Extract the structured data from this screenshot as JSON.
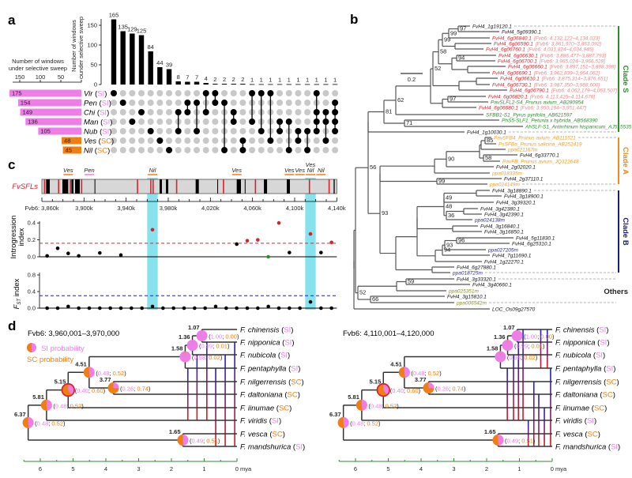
{
  "colors": {
    "si": "#ee7de8",
    "sc": "#f07f12",
    "red": "#d8232a",
    "cyan": "#86e3ee",
    "green": "#2e8b2e",
    "navy": "#1b1f7a",
    "clade_s": "#2e8b2e",
    "clade_a": "#f08a1c",
    "clade_b": "#1b1f7a",
    "others": "#8a8a2a",
    "coords": "#e58a8a",
    "tree_orange": "#e8a030"
  },
  "panel_a": {
    "label": "a",
    "top_axis_title": [
      "Number of windows",
      "under selective sweep"
    ],
    "top_ticks": [
      0,
      50,
      100,
      150
    ],
    "left_axis_title": [
      "Number of windows",
      "under selective sweep"
    ],
    "left_ticks": [
      150,
      100,
      50,
      0
    ],
    "sets": [
      {
        "name": "Vir",
        "type": "SI",
        "size": 175
      },
      {
        "name": "Pen",
        "type": "SI",
        "size": 154
      },
      {
        "name": "Chi",
        "type": "SI",
        "size": 149
      },
      {
        "name": "Man",
        "type": "SI",
        "size": 136
      },
      {
        "name": "Nub",
        "type": "SI",
        "size": 105
      },
      {
        "name": "Ves",
        "type": "SC",
        "size": 48
      },
      {
        "name": "Nil",
        "type": "SC",
        "size": 45
      }
    ],
    "intersections": [
      {
        "count": 165,
        "sets": [
          "Vir"
        ]
      },
      {
        "count": 135,
        "sets": [
          "Pen"
        ]
      },
      {
        "count": 129,
        "sets": [
          "Man"
        ]
      },
      {
        "count": 125,
        "sets": [
          "Chi"
        ]
      },
      {
        "count": 84,
        "sets": [
          "Nub"
        ]
      },
      {
        "count": 44,
        "sets": [
          "Ves"
        ]
      },
      {
        "count": 39,
        "sets": [
          "Nil"
        ]
      },
      {
        "count": 8,
        "sets": [
          "Chi",
          "Nub"
        ]
      },
      {
        "count": 7,
        "sets": [
          "Pen",
          "Chi"
        ]
      },
      {
        "count": 7,
        "sets": [
          "Pen",
          "Nub"
        ]
      },
      {
        "count": 4,
        "sets": [
          "Vir",
          "Chi"
        ]
      },
      {
        "count": 2,
        "sets": [
          "Vir",
          "Pen"
        ]
      },
      {
        "count": 2,
        "sets": [
          "Pen",
          "Nil"
        ]
      },
      {
        "count": 2,
        "sets": [
          "Chi",
          "Man"
        ]
      },
      {
        "count": 2,
        "sets": [
          "Ves",
          "Nil"
        ]
      },
      {
        "count": 1,
        "sets": [
          "Vir",
          "Man"
        ]
      },
      {
        "count": 1,
        "sets": [
          "Vir",
          "Nub"
        ]
      },
      {
        "count": 1,
        "sets": [
          "Vir",
          "Ves"
        ]
      },
      {
        "count": 1,
        "sets": [
          "Man",
          "Nub"
        ]
      },
      {
        "count": 1,
        "sets": [
          "Man",
          "Nil"
        ]
      },
      {
        "count": 1,
        "sets": [
          "Nub",
          "Ves"
        ]
      },
      {
        "count": 1,
        "sets": [
          "Nub",
          "Nil"
        ]
      },
      {
        "count": 1,
        "sets": [
          "Vir",
          "Chi",
          "Man",
          "Nub"
        ]
      },
      {
        "count": 1,
        "sets": [
          "Chi",
          "Man",
          "Ves"
        ]
      },
      {
        "count": 1,
        "sets": [
          "Pen",
          "Chi",
          "Man",
          "Nub"
        ]
      }
    ]
  },
  "panel_b": {
    "label": "b",
    "scale_label": "0.2",
    "clades": [
      {
        "name": "Clade S",
        "first": 0,
        "last": 18,
        "color": "#2e8b2e"
      },
      {
        "name": "Clade A",
        "first": 19,
        "last": 27,
        "color": "#f08a1c"
      },
      {
        "name": "Clade B",
        "first": 28,
        "last": 42,
        "color": "#1b1f7a"
      },
      {
        "name": "Others",
        "first": 43,
        "last": 47,
        "color": "#8a8a8a"
      }
    ],
    "leaves": [
      {
        "name": "FvH4_1g19120.1",
        "g": "k"
      },
      {
        "name": "FvH4_5g09390.1",
        "g": "k"
      },
      {
        "name": "FvH4_6g06840.1",
        "g": "r",
        "coord": "[Fvb6: 4,132,122–4,134,023]"
      },
      {
        "name": "FvH4_6g06590.1",
        "g": "r",
        "coord": "[Fvb6: 3,861,970–3,863,092]"
      },
      {
        "name": "FvH4_6g06760.1",
        "g": "r",
        "coord": "[Fvb6: 4,031,824–4,034,945]"
      },
      {
        "name": "FvH4_6g06630.1",
        "g": "r",
        "coord": "[Fvb6: 3,886,477–3,887,793]"
      },
      {
        "name": "FvH4_6g06700.1",
        "g": "r",
        "coord": "[Fvb6: 3,965,024–3,966,528]"
      },
      {
        "name": "FvH4_6g06660.1",
        "g": "r",
        "coord": "[Fvb6: 3,897,151–3,898,398]"
      },
      {
        "name": "FvH4_6g06690.1",
        "g": "r",
        "coord": "[Fvb6: 3,962,839–3,964,062]"
      },
      {
        "name": "FvH4_6g06610.1",
        "g": "r",
        "coord": "[Fvb6: 3,875,314–3,876,651]"
      },
      {
        "name": "FvH4_6g06730.1",
        "g": "r",
        "coord": "[Fvb6: 3,987,350–3,988,600]"
      },
      {
        "name": "FvH4_6g06790.1",
        "g": "r",
        "coord": "[Fvb6: 4,062,179–4,063,507]"
      },
      {
        "name": "FvH4_6g06820.1",
        "g": "r",
        "coord": "[Fvb6: 4,113,425–4,114,676]"
      },
      {
        "name": "PavSLFL2-S4_Prunus avium_AB280954",
        "g": "g"
      },
      {
        "name": "FvH4_6g06680.1",
        "g": "r",
        "coord": "[Fvb6: 3,950,194–3,951,447]"
      },
      {
        "name": "SFBB1-S1_Pyrus pyrifolia_AB621597",
        "g": "g"
      },
      {
        "name": "PhS5-SLF1_Petunia x hybrida_AB568390",
        "g": "g"
      },
      {
        "name": "AhSLF-S1_Antirrhinum hispanicum_AJ515535",
        "g": "g"
      },
      {
        "name": "FvH4_1g10030.1",
        "g": "k"
      },
      {
        "name": "PavSFB4_Prunus avium_AB111521",
        "g": "o"
      },
      {
        "name": "PsSFBa_Prunus salicina_AB252419",
        "g": "o"
      },
      {
        "name": "ppa021167m",
        "g": "o"
      },
      {
        "name": "FvH4_6g33770.1",
        "g": "k"
      },
      {
        "name": "PavFB_Prunus avium_JQ322648",
        "g": "o"
      },
      {
        "name": "FvH4_2g02020.1",
        "g": "k"
      },
      {
        "name": "ppa018335m",
        "g": "o"
      },
      {
        "name": "FvH4_2g37110.1",
        "g": "k"
      },
      {
        "name": "ppa024149m",
        "g": "o"
      },
      {
        "name": "FvH4_3g18890.1",
        "g": "k"
      },
      {
        "name": "FvH4_3g18900.1",
        "g": "k"
      },
      {
        "name": "FvH4_3g39320.1",
        "g": "k"
      },
      {
        "name": "FvH4_3g42380.1",
        "g": "k"
      },
      {
        "name": "FvH4_3g42390.1",
        "g": "k"
      },
      {
        "name": "ppa024138m",
        "g": "n"
      },
      {
        "name": "FvH4_3g16840.1",
        "g": "k"
      },
      {
        "name": "FvH4_3g16850.1",
        "g": "k"
      },
      {
        "name": "FvH4_5g11830.1",
        "g": "k"
      },
      {
        "name": "FvH4_6g25310.1",
        "g": "k"
      },
      {
        "name": "ppa027205m",
        "g": "n"
      },
      {
        "name": "FvH4_7g11690.1",
        "g": "k"
      },
      {
        "name": "FvH4_1g22270.1",
        "g": "k"
      },
      {
        "name": "FvH4_6g27880.1",
        "g": "k"
      },
      {
        "name": "ppa018725m",
        "g": "n"
      },
      {
        "name": "FvH4_3g33320.1",
        "g": "k"
      },
      {
        "name": "FvH4_3g40660.1",
        "g": "k"
      },
      {
        "name": "ppa025351m",
        "g": "y"
      },
      {
        "name": "FvH4_3g15810.1",
        "g": "k"
      },
      {
        "name": "ppa006542m",
        "g": "y"
      },
      {
        "name": "LOC_Os09g27570",
        "g": "k"
      }
    ]
  },
  "panel_c": {
    "label": "c",
    "track_label": "FvSFLs",
    "x_ticks": [
      "Fvb6: 3,860k",
      "3,900k",
      "3,940k",
      "3,980k",
      "4,020k",
      "4,060k",
      "4,100k",
      "4,140k"
    ],
    "x_range_k": [
      3860,
      4140
    ],
    "highlight_windows_k": [
      [
        3960,
        3970
      ],
      [
        4110,
        4120
      ]
    ],
    "sfl_genes_k": [
      3861.97,
      3875.31,
      3886.48,
      3897.15,
      3950.19,
      3962.84,
      3965.02,
      3987.35,
      4031.82,
      4062.18,
      4113.43,
      4132.12
    ],
    "other_genes_k": [
      [
        3864,
        3867.5
      ],
      [
        3879.5,
        3885
      ],
      [
        3888,
        3890
      ],
      [
        3891.5,
        3896
      ],
      [
        3910,
        3910.6
      ],
      [
        3971.8,
        3974
      ],
      [
        3977.8,
        3980
      ],
      [
        4006,
        4009
      ],
      [
        4026.5,
        4027.3
      ],
      [
        4045,
        4049
      ],
      [
        4052.6,
        4053.2
      ],
      [
        4070.8,
        4073.8
      ],
      [
        4092.5,
        4095.5
      ],
      [
        4137,
        4138
      ]
    ],
    "sweep_labels": [
      {
        "text": "Ves",
        "k": 3885,
        "type": "SC"
      },
      {
        "text": "Pen",
        "k": 3905,
        "type": "SI"
      },
      {
        "text": "Nil",
        "k": 3965,
        "type": "SC"
      },
      {
        "text": "Ves",
        "k": 4045,
        "type": "SC"
      },
      {
        "text": "Ves",
        "k": 4095,
        "type": "SC"
      },
      {
        "text": "Ves",
        "k": 4105,
        "type": "SC"
      },
      {
        "text": "Ves\nNil",
        "k": 4115,
        "type": "SC"
      },
      {
        "text": "Nil",
        "k": 4125,
        "type": "SC"
      }
    ],
    "introgression": {
      "ylabel": [
        "Introgression",
        "index"
      ],
      "ticks": [
        0.0,
        0.2,
        0.4
      ],
      "threshold": 0.16,
      "points": [
        {
          "k": 3865,
          "v": 0.01,
          "c": "k"
        },
        {
          "k": 3875,
          "v": 0.1,
          "c": "k"
        },
        {
          "k": 3885,
          "v": 0.04,
          "c": "k"
        },
        {
          "k": 3895,
          "v": 0.01,
          "c": "k"
        },
        {
          "k": 3915,
          "v": 0.045,
          "c": "k"
        },
        {
          "k": 3935,
          "v": 0.02,
          "c": "k"
        },
        {
          "k": 3965,
          "v": 0.32,
          "c": "r"
        },
        {
          "k": 4045,
          "v": 0.15,
          "c": "k"
        },
        {
          "k": 4055,
          "v": 0.19,
          "c": "r"
        },
        {
          "k": 4065,
          "v": 0.2,
          "c": "r"
        },
        {
          "k": 4075,
          "v": 0.0,
          "c": "g"
        },
        {
          "k": 4085,
          "v": 0.4,
          "c": "r"
        },
        {
          "k": 4095,
          "v": 0.05,
          "c": "k"
        },
        {
          "k": 4115,
          "v": 0.27,
          "c": "r"
        },
        {
          "k": 4125,
          "v": 0.05,
          "c": "k"
        },
        {
          "k": 4135,
          "v": 0.17,
          "c": "r"
        }
      ]
    },
    "fst": {
      "ylabel": "F",
      "ylabel_sub": "ST",
      "ylabel_tail": " index",
      "ticks": [
        0.0,
        0.4,
        0.8
      ],
      "threshold": 0.3,
      "values": [
        0,
        0,
        0.04,
        0,
        0,
        0,
        0,
        0,
        0,
        0,
        0.04,
        0,
        0,
        0,
        0,
        0,
        0.04,
        0,
        0,
        0,
        0,
        0.04,
        0,
        0,
        0,
        0.15,
        0,
        0
      ]
    }
  },
  "panel_d": {
    "label": "d",
    "legend": {
      "si": "SI probability",
      "sc": "SC probability"
    },
    "axis_ticks": [
      "6",
      "5",
      "4",
      "3",
      "2",
      "1",
      "0 mya"
    ],
    "taxa": [
      {
        "name": "F. chinensis",
        "type": "SI"
      },
      {
        "name": "F. nipponica",
        "type": "SI"
      },
      {
        "name": "F. nubicola",
        "type": "SI"
      },
      {
        "name": "F. pentaphylla",
        "type": "SI"
      },
      {
        "name": "F. nilgerrensis",
        "type": "SC"
      },
      {
        "name": "F. daltoniana",
        "type": "SC"
      },
      {
        "name": "F. iinumae",
        "type": "SC"
      },
      {
        "name": "F. viridis",
        "type": "SI"
      },
      {
        "name": "F. vesca",
        "type": "SC"
      },
      {
        "name": "F. mandshurica",
        "type": "SI"
      }
    ],
    "nodes": [
      {
        "age": "1.07",
        "si": "1.00",
        "sc": "0.00"
      },
      {
        "age": "1.36",
        "si": "0.99",
        "sc": "0.01"
      },
      {
        "age": "1.58",
        "si": "0.98",
        "sc": "0.02"
      },
      {
        "age": "3.77",
        "si": "0.26",
        "sc": "0.74"
      },
      {
        "age": "4.51",
        "si": "0.48",
        "sc": "0.52"
      },
      {
        "age": "5.15",
        "si": "0.40",
        "sc": "0.60"
      },
      {
        "age": "5.81",
        "si": "0.48",
        "sc": "0.52"
      },
      {
        "age": "1.65",
        "si": "0.49",
        "sc": "0.51"
      },
      {
        "age": "6.37",
        "si": "0.48",
        "sc": "0.52"
      }
    ],
    "trees": [
      {
        "title": "Fvb6: 3,960,001–3,970,000",
        "introgressions": [
          [
            3,
            7,
            1.5
          ],
          [
            2,
            7,
            1.22
          ],
          [
            1,
            7,
            0.92
          ],
          [
            3,
            9,
            0.65
          ],
          [
            2,
            9,
            0.36
          ],
          [
            1,
            9,
            0.07
          ]
        ]
      },
      {
        "title": "Fvb6: 4,110,001–4,120,000",
        "introgressions": [
          [
            3,
            7,
            1.37
          ],
          [
            2,
            7,
            1.18
          ],
          [
            1,
            7,
            1.03
          ],
          [
            0,
            7,
            0.89
          ],
          [
            7,
            9,
            0.73
          ],
          [
            4,
            9,
            0.56
          ],
          [
            5,
            9,
            0.41
          ],
          [
            6,
            9,
            0.24
          ],
          [
            3,
            9,
            0.05
          ],
          [
            0,
            3,
            0.35
          ],
          [
            0,
            3,
            0.15
          ]
        ]
      }
    ]
  }
}
